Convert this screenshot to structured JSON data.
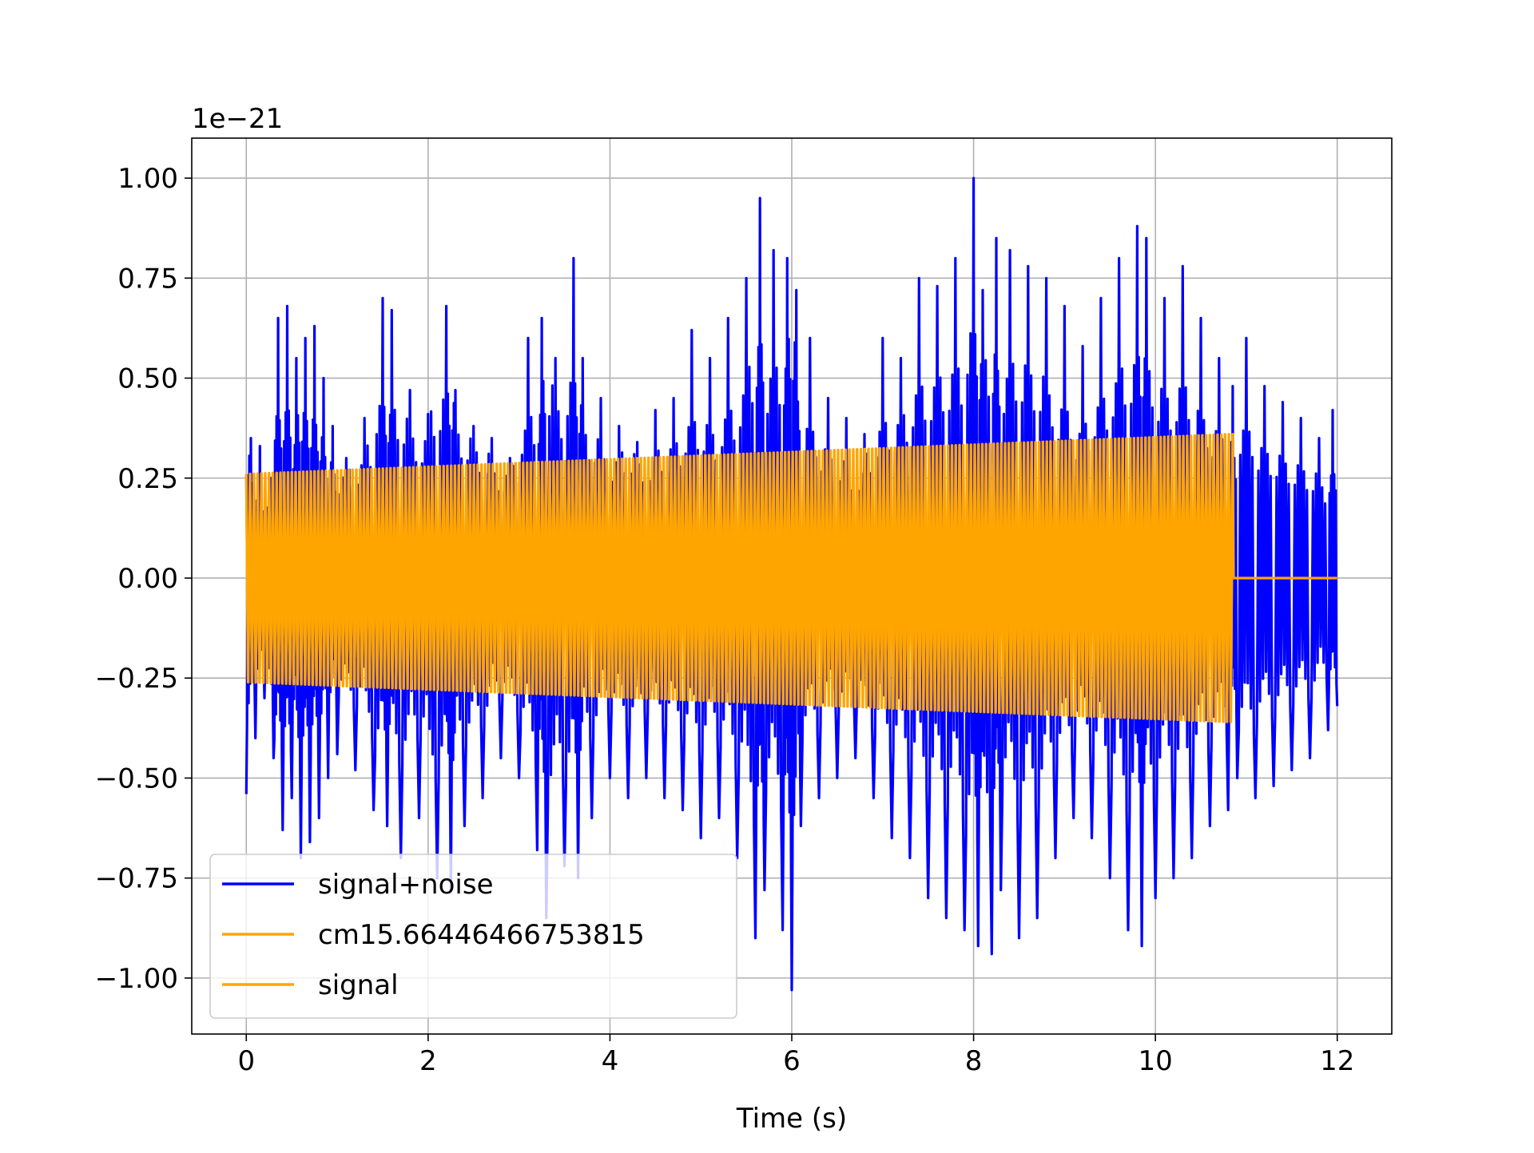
{
  "chart_data": {
    "type": "line",
    "title": "",
    "xlabel": "Time (s)",
    "ylabel": "",
    "y_offset_label": "1e−21",
    "xlim": [
      -0.6,
      12.6
    ],
    "ylim": [
      -1.14,
      1.1
    ],
    "x_ticks": [
      0,
      2,
      4,
      6,
      8,
      10,
      12
    ],
    "x_tick_labels": [
      "0",
      "2",
      "4",
      "6",
      "8",
      "10",
      "12"
    ],
    "y_ticks": [
      -1.0,
      -0.75,
      -0.5,
      -0.25,
      0.0,
      0.25,
      0.5,
      0.75,
      1.0
    ],
    "y_tick_labels": [
      "−1.00",
      "−0.75",
      "−0.50",
      "−0.25",
      "0.00",
      "0.25",
      "0.50",
      "0.75",
      "1.00"
    ],
    "grid": true,
    "legend_position": "lower-left",
    "series": [
      {
        "name": "signal+noise",
        "color": "#0000ff",
        "x": [
          0.0,
          0.05,
          0.1,
          0.15,
          0.2,
          0.25,
          0.3,
          0.35,
          0.4,
          0.45,
          0.5,
          0.55,
          0.6,
          0.65,
          0.7,
          0.75,
          0.8,
          0.85,
          0.9,
          0.95,
          1.0,
          1.1,
          1.2,
          1.3,
          1.4,
          1.5,
          1.55,
          1.6,
          1.7,
          1.8,
          1.9,
          2.0,
          2.1,
          2.2,
          2.25,
          2.3,
          2.4,
          2.5,
          2.6,
          2.7,
          2.8,
          2.9,
          3.0,
          3.1,
          3.2,
          3.25,
          3.3,
          3.4,
          3.5,
          3.6,
          3.65,
          3.7,
          3.8,
          3.9,
          4.0,
          4.1,
          4.2,
          4.3,
          4.4,
          4.5,
          4.6,
          4.7,
          4.8,
          4.9,
          5.0,
          5.1,
          5.2,
          5.3,
          5.4,
          5.5,
          5.6,
          5.65,
          5.7,
          5.8,
          5.9,
          5.95,
          6.0,
          6.05,
          6.1,
          6.2,
          6.3,
          6.4,
          6.5,
          6.6,
          6.7,
          6.8,
          6.9,
          7.0,
          7.1,
          7.2,
          7.3,
          7.4,
          7.5,
          7.6,
          7.7,
          7.8,
          7.9,
          8.0,
          8.05,
          8.1,
          8.2,
          8.25,
          8.3,
          8.4,
          8.5,
          8.6,
          8.7,
          8.8,
          8.9,
          9.0,
          9.1,
          9.2,
          9.3,
          9.4,
          9.5,
          9.6,
          9.7,
          9.8,
          9.85,
          9.9,
          10.0,
          10.1,
          10.2,
          10.3,
          10.4,
          10.5,
          10.6,
          10.7,
          10.8,
          10.85,
          10.9,
          11.0,
          11.1,
          11.2,
          11.3,
          11.4,
          11.5,
          11.6,
          11.7,
          11.8,
          11.9,
          11.95,
          12.0
        ],
        "y": [
          -0.54,
          0.35,
          -0.4,
          0.33,
          -0.3,
          0.25,
          -0.45,
          0.65,
          -0.63,
          0.68,
          -0.55,
          0.55,
          -0.7,
          0.6,
          -0.66,
          0.63,
          -0.6,
          0.5,
          -0.5,
          0.38,
          -0.44,
          0.3,
          -0.48,
          0.4,
          -0.58,
          0.7,
          -0.62,
          0.67,
          -0.7,
          0.47,
          -0.6,
          0.41,
          -0.75,
          0.68,
          -0.78,
          0.47,
          -0.62,
          0.38,
          -0.55,
          0.35,
          -0.45,
          0.3,
          -0.5,
          0.6,
          -0.68,
          0.65,
          -0.85,
          0.55,
          -0.72,
          0.8,
          -0.75,
          0.55,
          -0.6,
          0.45,
          -0.5,
          0.38,
          -0.55,
          0.34,
          -0.5,
          0.42,
          -0.55,
          0.45,
          -0.58,
          0.62,
          -0.65,
          0.55,
          -0.6,
          0.65,
          -0.7,
          0.75,
          -0.9,
          0.95,
          -0.78,
          0.82,
          -0.88,
          0.8,
          -1.03,
          0.72,
          -0.62,
          0.6,
          -0.55,
          0.45,
          -0.5,
          0.4,
          -0.45,
          0.36,
          -0.55,
          0.6,
          -0.65,
          0.55,
          -0.7,
          0.75,
          -0.8,
          0.73,
          -0.85,
          0.8,
          -0.88,
          1.0,
          -0.92,
          0.72,
          -0.94,
          0.85,
          -0.78,
          0.82,
          -0.9,
          0.78,
          -0.85,
          0.75,
          -0.7,
          0.68,
          -0.6,
          0.58,
          -0.65,
          0.7,
          -0.75,
          0.8,
          -0.88,
          0.88,
          -0.92,
          0.85,
          -0.8,
          0.7,
          -0.75,
          0.78,
          -0.7,
          0.65,
          -0.62,
          0.55,
          -0.58,
          0.48,
          -0.5,
          0.6,
          -0.55,
          0.48,
          -0.52,
          0.44,
          -0.48,
          0.4,
          -0.45,
          0.35,
          -0.38,
          0.42,
          -0.32
        ]
      },
      {
        "name": "cm15.66446466753815",
        "color": "#ffa500",
        "x": [
          0.0,
          10.85
        ],
        "amplitude": [
          0.26,
          0.36
        ],
        "y": [
          0.0,
          0.0
        ]
      },
      {
        "name": "signal",
        "color": "#ffa500",
        "x": [
          0.0,
          10.85,
          10.86,
          12.0
        ],
        "amplitude": [
          0.26,
          0.36,
          0.0,
          0.0
        ],
        "y": [
          0.0,
          0.0,
          0.0,
          0.0
        ]
      }
    ]
  }
}
